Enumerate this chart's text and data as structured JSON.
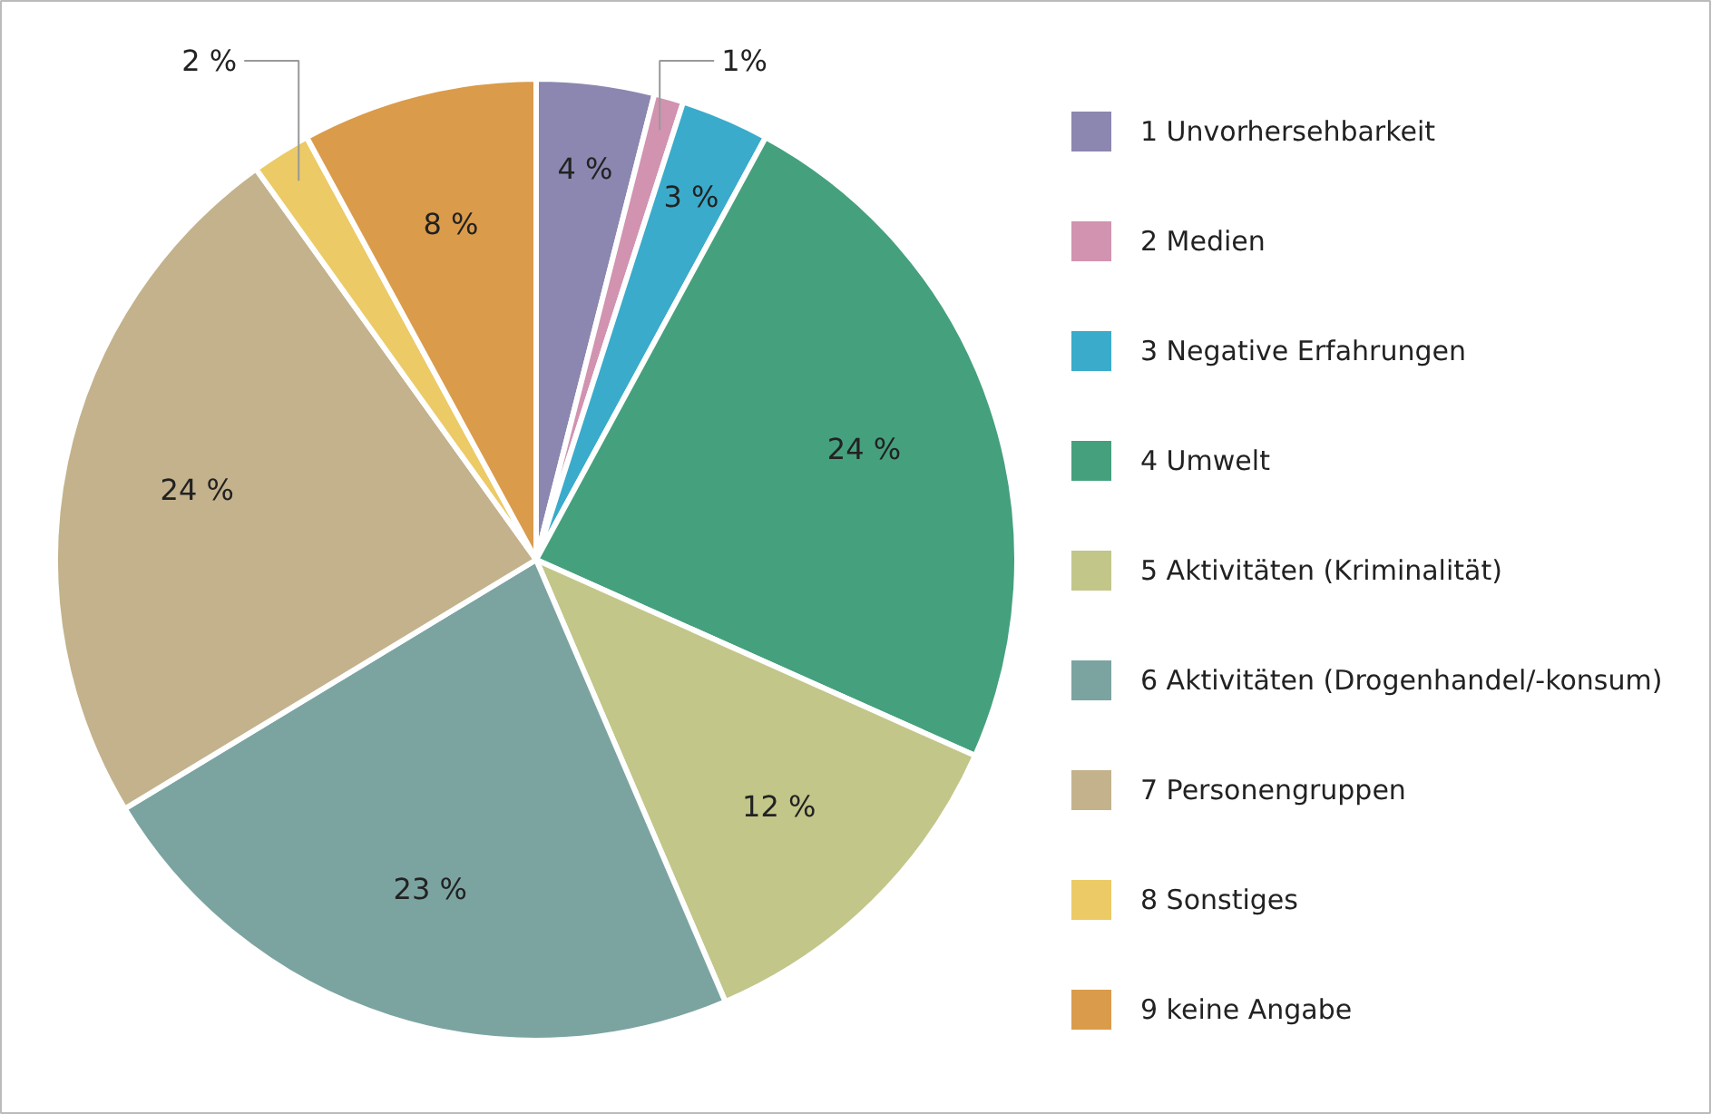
{
  "chart_data": {
    "type": "pie",
    "categories": [
      "1 Unvorhersehbarkeit",
      "2 Medien",
      "3 Negative Erfahrungen",
      "4 Umwelt",
      "5 Aktivitäten (Kriminalität)",
      "6 Aktivitäten (Drogenhandel/-konsum)",
      "7 Personengruppen",
      "8 Sonstiges",
      "9 keine Angabe"
    ],
    "values": [
      4,
      1,
      3,
      24,
      12,
      23,
      24,
      2,
      8
    ],
    "value_labels": [
      "4 %",
      "1%",
      "3 %",
      "24 %",
      "12 %",
      "23 %",
      "24 %",
      "2 %",
      "8 %"
    ],
    "colors": [
      "#8b87b0",
      "#d193b0",
      "#3aabcb",
      "#45a07e",
      "#c2c689",
      "#7ba4a1",
      "#c3b28c",
      "#ecca66",
      "#da9b4b"
    ],
    "legend": "right"
  }
}
